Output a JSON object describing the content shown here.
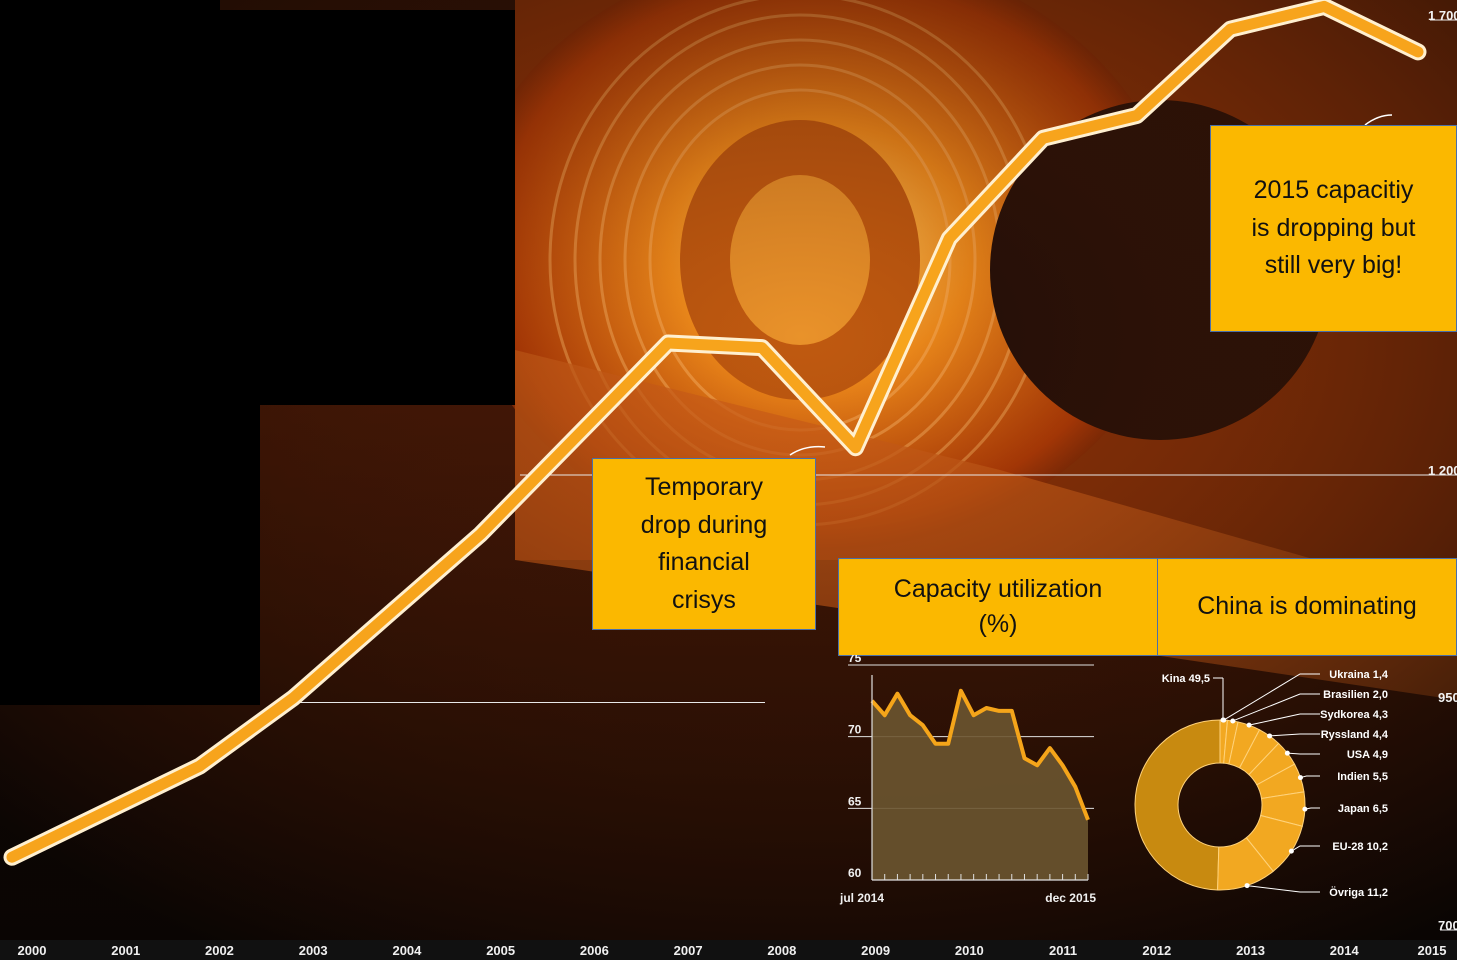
{
  "chart_data": [
    {
      "type": "line",
      "title": "",
      "x": [
        "2000",
        "2001",
        "2002",
        "2003",
        "2004",
        "2005",
        "2006",
        "2007",
        "2008",
        "2009",
        "2010",
        "2011",
        "2012",
        "2013",
        "2014",
        "2015"
      ],
      "y_tick_labels": [
        "1 700",
        "1 200",
        "950",
        "700"
      ],
      "y_tick_values": [
        1700,
        1200,
        950,
        700
      ],
      "ylim": [
        700,
        1700
      ],
      "series": [
        {
          "values": [
            780,
            830,
            880,
            955,
            1045,
            1135,
            1240,
            1345,
            1340,
            1230,
            1460,
            1570,
            1595,
            1690,
            1715,
            1665
          ]
        }
      ],
      "annotations": [
        {
          "id": "crisis",
          "text_lines": [
            "Temporary",
            "drop during",
            "financial",
            "crisys"
          ]
        },
        {
          "id": "capacity",
          "text_lines": [
            "2015 capacitiy",
            "is dropping but",
            "still very big!"
          ]
        }
      ],
      "grid": false
    },
    {
      "type": "area",
      "title": "Capacity utilization (%)",
      "x_start_label": "jul 2014",
      "x_end_label": "dec 2015",
      "ylim": [
        60,
        75
      ],
      "y_ticks": [
        60,
        65,
        70,
        75
      ],
      "values": [
        72.5,
        71.5,
        73.0,
        71.5,
        70.8,
        69.5,
        69.5,
        73.2,
        71.5,
        72.0,
        71.8,
        71.8,
        68.5,
        68.0,
        69.2,
        68.0,
        66.5,
        64.2
      ],
      "grid": true
    },
    {
      "type": "pie",
      "title": "China is dominating",
      "donut": true,
      "slices": [
        {
          "label": "Kina",
          "value_text": "49,5",
          "value": 49.5
        },
        {
          "label": "Ukraina",
          "value_text": "1,4",
          "value": 1.4
        },
        {
          "label": "Brasilien",
          "value_text": "2,0",
          "value": 2.0
        },
        {
          "label": "Sydkorea",
          "value_text": "4,3",
          "value": 4.3
        },
        {
          "label": "Ryssland",
          "value_text": "4,4",
          "value": 4.4
        },
        {
          "label": "USA",
          "value_text": "4,9",
          "value": 4.9
        },
        {
          "label": "Indien",
          "value_text": "5,5",
          "value": 5.5
        },
        {
          "label": "Japan",
          "value_text": "6,5",
          "value": 6.5
        },
        {
          "label": "EU-28",
          "value_text": "10,2",
          "value": 10.2
        },
        {
          "label": "Övriga",
          "value_text": "11,2",
          "value": 11.2
        }
      ]
    }
  ],
  "labels": {
    "inset_title_lines": [
      "Capacity utilization",
      "(%)"
    ],
    "donut_title": "China is dominating"
  },
  "colors": {
    "line": "#f7a41c",
    "line_outline": "#fff0d0",
    "callout_bg": "#fbb800",
    "area_fill": "#6b5530",
    "donut_main": "#c88a10",
    "donut_slices": "#f2a821"
  }
}
